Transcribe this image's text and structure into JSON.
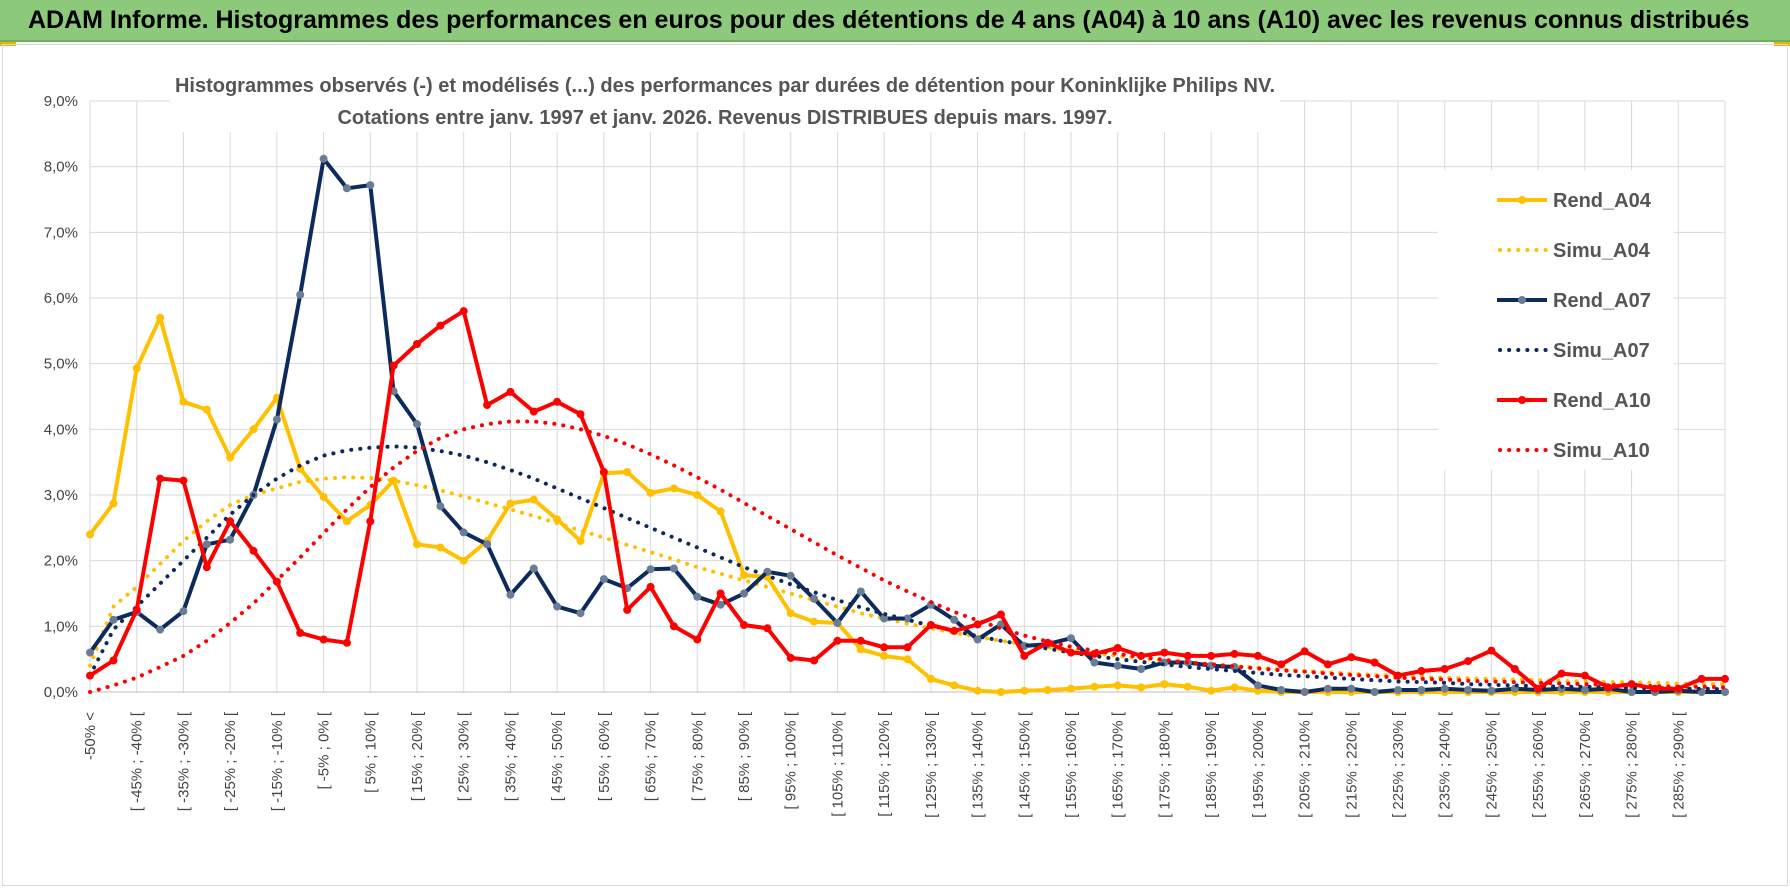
{
  "header": {
    "title": "ADAM Informe. Histogrammes des performances en euros pour des détentions de 4 ans (A04) à 10 ans (A10) avec les revenus connus distribués"
  },
  "chart_data": {
    "type": "line",
    "title_line1": "Histogrammes observés (-) et modélisés (...) des performances par durées de détention pour Koninklijke Philips NV.",
    "title_line2": "Cotations entre janv. 1997 et janv. 2026. Revenus DISTRIBUES depuis mars. 1997.",
    "ylim": [
      0,
      9
    ],
    "yticks": [
      "0,0%",
      "1,0%",
      "2,0%",
      "3,0%",
      "4,0%",
      "5,0%",
      "6,0%",
      "7,0%",
      "8,0%",
      "9,0%"
    ],
    "xtick_labels": [
      "-50% <",
      "[ -45% ; -40% [",
      "[ -35% ; -30% [",
      "[ -25% ; -20% [",
      "[ -15% ; -10% [",
      "[ -5% ; 0% [",
      "[ 5% ; 10% [",
      "[ 15% ; 20% [",
      "[ 25% ; 30% [",
      "[ 35% ; 40% [",
      "[ 45% ; 50% [",
      "[ 55% ; 60% [",
      "[ 65% ; 70% [",
      "[ 75% ; 80% [",
      "[ 85% ; 90% [",
      "[ 95% ; 100% [",
      "[ 105% ; 110% [",
      "[ 115% ; 120% [",
      "[ 125% ; 130% [",
      "[ 135% ; 140% [",
      "[ 145% ; 150% [",
      "[ 155% ; 160% [",
      "[ 165% ; 170% [",
      "[ 175% ; 180% [",
      "[ 185% ; 190% [",
      "[ 195% ; 200% [",
      "[ 205% ; 210% [",
      "[ 215% ; 220% [",
      "[ 225% ; 230% [",
      "[ 235% ; 240% [",
      "[ 245% ; 250% [",
      "[ 255% ; 260% [",
      "[ 265% ; 270% [",
      "[ 275% ; 280% [",
      "[ 285% ; 290% ["
    ],
    "legend_position": "right",
    "grid": true,
    "series": [
      {
        "name": "Rend_A04",
        "style": "solid",
        "color": "#ffc000",
        "values": [
          2.4,
          2.87,
          4.93,
          5.7,
          4.42,
          4.3,
          3.57,
          4.0,
          4.48,
          3.4,
          2.97,
          2.6,
          2.85,
          3.22,
          2.25,
          2.2,
          2.0,
          2.3,
          2.87,
          2.93,
          2.63,
          2.3,
          3.33,
          3.35,
          3.03,
          3.1,
          3.0,
          2.75,
          1.78,
          1.75,
          1.2,
          1.07,
          1.05,
          0.65,
          0.55,
          0.5,
          0.2,
          0.1,
          0.02,
          0.0,
          0.02,
          0.03,
          0.05,
          0.08,
          0.1,
          0.07,
          0.12,
          0.08,
          0.02,
          0.07,
          0.02,
          0.0,
          0.0,
          0.0,
          0.0,
          0.0,
          0.0,
          0.0,
          0.0,
          0.0,
          0.0,
          0.0,
          0.0,
          0.0,
          0.0,
          0.0,
          0.0,
          0.0,
          0.0,
          0.0,
          0.0
        ]
      },
      {
        "name": "Simu_A04",
        "style": "dotted",
        "color": "#ffc000",
        "values": [
          0.4,
          1.3,
          1.6,
          1.95,
          2.3,
          2.6,
          2.85,
          3.0,
          3.1,
          3.2,
          3.25,
          3.27,
          3.26,
          3.22,
          3.15,
          3.07,
          2.98,
          2.88,
          2.78,
          2.68,
          2.57,
          2.46,
          2.35,
          2.24,
          2.13,
          2.02,
          1.9,
          1.8,
          1.7,
          1.6,
          1.5,
          1.4,
          1.3,
          1.2,
          1.12,
          1.04,
          0.97,
          0.9,
          0.84,
          0.78,
          0.73,
          0.68,
          0.63,
          0.59,
          0.55,
          0.51,
          0.48,
          0.45,
          0.42,
          0.39,
          0.37,
          0.34,
          0.32,
          0.3,
          0.28,
          0.26,
          0.25,
          0.23,
          0.22,
          0.21,
          0.2,
          0.19,
          0.18,
          0.17,
          0.16,
          0.15,
          0.15,
          0.14,
          0.13,
          0.12,
          0.12
        ]
      },
      {
        "name": "Rend_A07",
        "style": "solid",
        "color": "#0d2a5c",
        "values": [
          0.6,
          1.1,
          1.22,
          0.95,
          1.23,
          2.25,
          2.32,
          3.0,
          4.15,
          6.05,
          8.12,
          7.67,
          7.72,
          4.58,
          4.08,
          2.83,
          2.43,
          2.25,
          1.48,
          1.88,
          1.3,
          1.2,
          1.72,
          1.58,
          1.87,
          1.88,
          1.45,
          1.33,
          1.5,
          1.83,
          1.77,
          1.42,
          1.05,
          1.53,
          1.12,
          1.12,
          1.33,
          1.1,
          0.8,
          1.03,
          0.7,
          0.73,
          0.82,
          0.45,
          0.4,
          0.35,
          0.45,
          0.45,
          0.4,
          0.38,
          0.1,
          0.03,
          0.0,
          0.05,
          0.05,
          0.0,
          0.03,
          0.03,
          0.05,
          0.03,
          0.02,
          0.05,
          0.03,
          0.05,
          0.03,
          0.05,
          0.0,
          0.0,
          0.02,
          0.0,
          0.0
        ]
      },
      {
        "name": "Simu_A07",
        "style": "dotted",
        "color": "#0d2a5c",
        "values": [
          0.25,
          0.95,
          1.3,
          1.65,
          2.0,
          2.35,
          2.7,
          3.0,
          3.25,
          3.45,
          3.6,
          3.68,
          3.72,
          3.74,
          3.72,
          3.67,
          3.6,
          3.5,
          3.38,
          3.25,
          3.1,
          2.95,
          2.8,
          2.65,
          2.5,
          2.35,
          2.2,
          2.05,
          1.9,
          1.77,
          1.64,
          1.52,
          1.4,
          1.29,
          1.19,
          1.1,
          1.01,
          0.93,
          0.85,
          0.78,
          0.72,
          0.66,
          0.6,
          0.55,
          0.5,
          0.46,
          0.42,
          0.38,
          0.35,
          0.32,
          0.29,
          0.26,
          0.24,
          0.22,
          0.2,
          0.18,
          0.16,
          0.15,
          0.14,
          0.12,
          0.11,
          0.1,
          0.09,
          0.08,
          0.08,
          0.07,
          0.06,
          0.06,
          0.05,
          0.05,
          0.04
        ]
      },
      {
        "name": "Rend_A10",
        "style": "solid",
        "color": "#ff0000",
        "values": [
          0.25,
          0.48,
          1.25,
          3.25,
          3.22,
          1.9,
          2.6,
          2.15,
          1.68,
          0.9,
          0.8,
          0.75,
          2.6,
          4.97,
          5.3,
          5.58,
          5.8,
          4.37,
          4.57,
          4.27,
          4.42,
          4.23,
          3.35,
          1.25,
          1.6,
          1.0,
          0.8,
          1.5,
          1.02,
          0.97,
          0.52,
          0.48,
          0.78,
          0.78,
          0.68,
          0.68,
          1.02,
          0.93,
          1.03,
          1.18,
          0.55,
          0.75,
          0.6,
          0.58,
          0.67,
          0.55,
          0.6,
          0.55,
          0.55,
          0.58,
          0.55,
          0.42,
          0.62,
          0.42,
          0.53,
          0.45,
          0.25,
          0.32,
          0.35,
          0.47,
          0.63,
          0.35,
          0.05,
          0.28,
          0.25,
          0.07,
          0.12,
          0.05,
          0.05,
          0.2,
          0.2
        ]
      },
      {
        "name": "Simu_A10",
        "style": "dotted",
        "color": "#ff0000",
        "values": [
          0.0,
          0.1,
          0.22,
          0.38,
          0.55,
          0.78,
          1.05,
          1.35,
          1.7,
          2.05,
          2.42,
          2.78,
          3.12,
          3.42,
          3.67,
          3.87,
          4.0,
          4.08,
          4.12,
          4.12,
          4.08,
          4.0,
          3.9,
          3.77,
          3.62,
          3.45,
          3.27,
          3.08,
          2.88,
          2.68,
          2.48,
          2.28,
          2.08,
          1.89,
          1.7,
          1.53,
          1.37,
          1.22,
          1.09,
          0.97,
          0.86,
          0.77,
          0.69,
          0.63,
          0.58,
          0.53,
          0.49,
          0.45,
          0.42,
          0.39,
          0.36,
          0.33,
          0.31,
          0.28,
          0.26,
          0.24,
          0.22,
          0.2,
          0.19,
          0.17,
          0.16,
          0.15,
          0.14,
          0.13,
          0.12,
          0.11,
          0.1,
          0.09,
          0.08,
          0.08,
          0.07
        ]
      }
    ]
  }
}
